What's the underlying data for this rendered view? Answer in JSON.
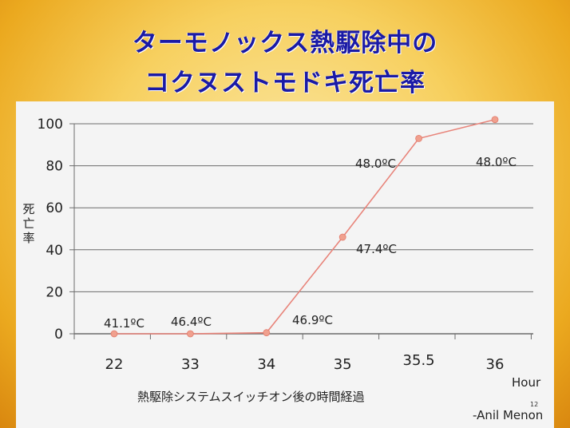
{
  "title_lines": [
    "ターモノックス熱駆除中の",
    "コクヌストモドキ死亡率"
  ],
  "ylabel": "死亡率",
  "xlabel": "熱駆除システムスイッチオン後の時間経過",
  "x_unit": "Hour",
  "credit": "-Anil Menon",
  "slide_number": "12",
  "colors": {
    "title": "#1a1aa6",
    "line": "#e8847a",
    "marker": "#f0a08e",
    "gridline": "#6b6b6b"
  },
  "chart_data": {
    "type": "line",
    "categories": [
      "22",
      "33",
      "34",
      "35",
      "35.5",
      "36"
    ],
    "values": [
      0,
      0,
      0.5,
      46,
      93,
      102
    ],
    "point_labels": [
      "41.1ºC",
      "46.4ºC",
      "46.9ºC",
      "47.4ºC",
      "48.0ºC",
      "48.0ºC"
    ],
    "y_ticks": [
      "0",
      "20",
      "40",
      "60",
      "80",
      "100"
    ],
    "ylim": [
      0,
      100
    ],
    "grid": true,
    "legend": "none"
  }
}
